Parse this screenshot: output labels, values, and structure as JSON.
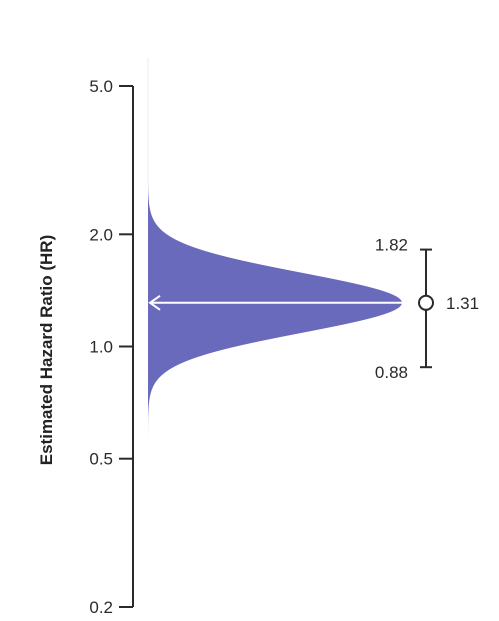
{
  "chart_data": {
    "type": "area",
    "ylabel": "Estimated Hazard Ratio (HR)",
    "yscale": "log",
    "ylim": [
      0.2,
      6.0
    ],
    "yticks": [
      {
        "value": 5.0,
        "label": "5.0"
      },
      {
        "value": 2.0,
        "label": "2.0"
      },
      {
        "value": 1.0,
        "label": "1.0"
      },
      {
        "value": 0.5,
        "label": "0.5"
      },
      {
        "value": 0.2,
        "label": "0.2"
      }
    ],
    "distribution": {
      "point_estimate": 1.31,
      "lower": 0.88,
      "upper": 1.82,
      "color": "#6a6abd",
      "arrow_color": "#ffffff"
    },
    "interval": {
      "point_label": "1.31",
      "lower_label": "0.88",
      "upper_label": "1.82",
      "color": "#2a2a2a"
    },
    "grid": false,
    "legend": "none"
  }
}
